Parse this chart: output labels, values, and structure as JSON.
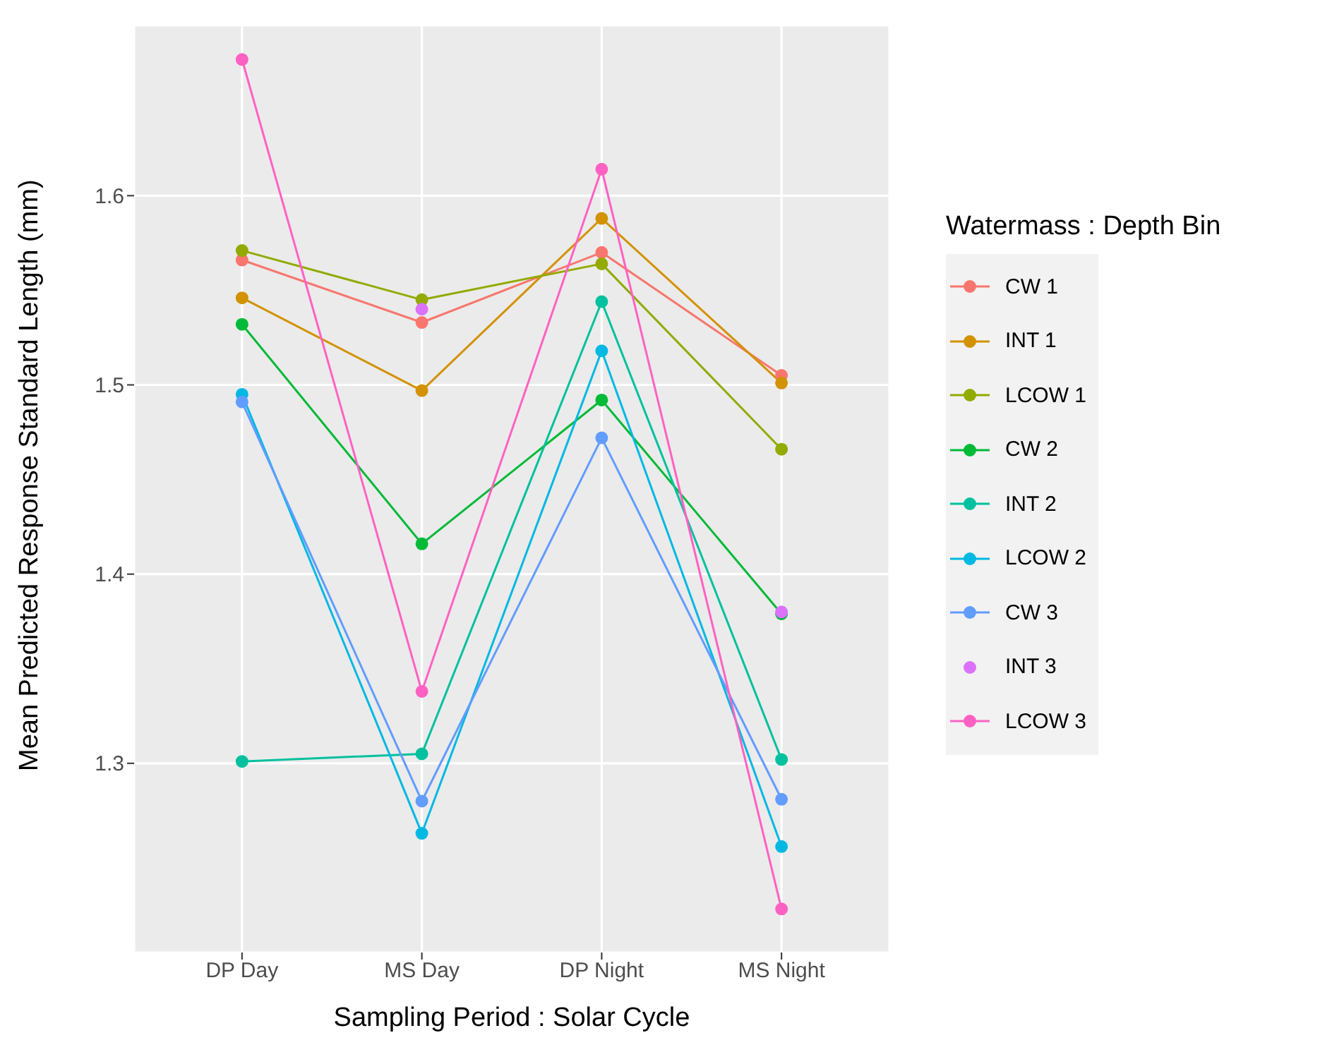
{
  "chart_data": {
    "type": "line",
    "xlabel": "Sampling Period : Solar Cycle",
    "ylabel": "Mean Predicted Response Standard Length (mm)",
    "legend_title": "Watermass : Depth Bin",
    "categories": [
      "DP Day",
      "MS Day",
      "DP Night",
      "MS Night"
    ],
    "series": [
      {
        "name": "CW 1",
        "color": "#f8766d",
        "values": [
          1.566,
          1.533,
          1.57,
          1.505
        ]
      },
      {
        "name": "INT 1",
        "color": "#d39200",
        "values": [
          1.546,
          1.497,
          1.588,
          1.501
        ]
      },
      {
        "name": "LCOW 1",
        "color": "#93aa00",
        "values": [
          1.571,
          1.545,
          1.564,
          1.466
        ]
      },
      {
        "name": "CW 2",
        "color": "#00ba38",
        "values": [
          1.532,
          1.416,
          1.492,
          1.379
        ]
      },
      {
        "name": "INT 2",
        "color": "#00c19f",
        "values": [
          1.301,
          1.305,
          1.544,
          1.302
        ]
      },
      {
        "name": "LCOW 2",
        "color": "#00b9e3",
        "values": [
          1.495,
          1.263,
          1.518,
          1.256
        ]
      },
      {
        "name": "CW 3",
        "color": "#619cff",
        "values": [
          1.491,
          1.28,
          1.472,
          1.281
        ]
      },
      {
        "name": "INT 3",
        "color": "#db72fb",
        "type": "scatter",
        "values": [
          null,
          1.54,
          null,
          1.38
        ]
      },
      {
        "name": "LCOW 3",
        "color": "#ff61c3",
        "values": [
          1.672,
          1.338,
          1.614,
          1.223
        ]
      }
    ],
    "ylim": [
      1.2,
      1.69
    ],
    "yticks": [
      1.3,
      1.4,
      1.5,
      1.6
    ],
    "grid": true,
    "legend": "right",
    "marker": "circle",
    "line_style": "solid"
  }
}
